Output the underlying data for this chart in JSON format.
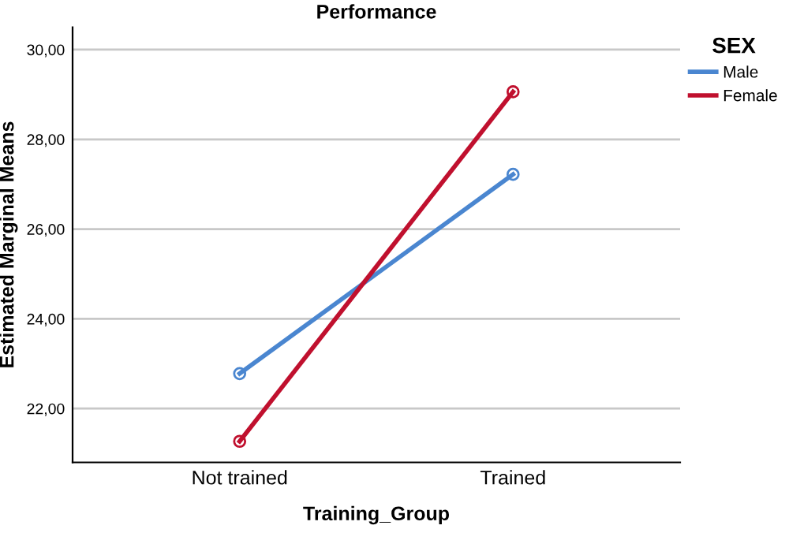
{
  "chart_data": {
    "type": "line",
    "title": "Performance",
    "xlabel": "Training_Group",
    "ylabel": "Estimated Marginal Means",
    "legend_title": "SEX",
    "categories": [
      "Not trained",
      "Trained"
    ],
    "series": [
      {
        "name": "Male",
        "color": "#4a86d0",
        "values": [
          22.78,
          27.22
        ]
      },
      {
        "name": "Female",
        "color": "#c0102e",
        "values": [
          21.27,
          29.06
        ]
      }
    ],
    "ylim": [
      20.8,
      30.5
    ],
    "yticks": [
      {
        "value": 22,
        "label": "22,00"
      },
      {
        "value": 24,
        "label": "24,00"
      },
      {
        "value": 26,
        "label": "26,00"
      },
      {
        "value": 28,
        "label": "28,00"
      },
      {
        "value": 30,
        "label": "30,00"
      }
    ],
    "grid": "y",
    "legend": "top right",
    "marker": "circle",
    "line_style": "solid"
  }
}
